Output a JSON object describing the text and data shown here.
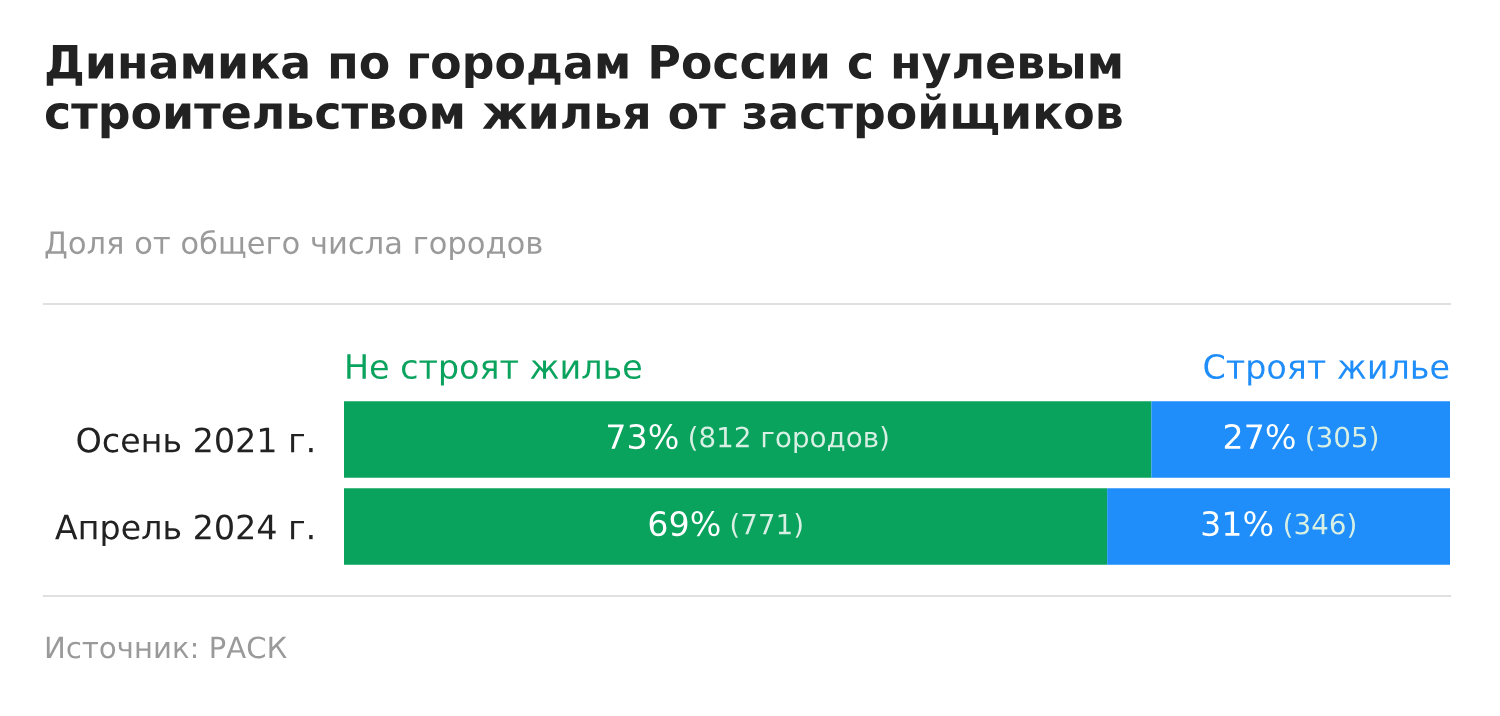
{
  "chart_data": {
    "type": "bar",
    "orientation": "horizontal",
    "stacked": true,
    "title": "Динамика по городам России с нулевым\nстроительством жилья от застройщиков",
    "subtitle": "Доля от общего числа городов",
    "categories": [
      "Осень 2021 г.",
      "Апрель 2024 г."
    ],
    "series": [
      {
        "name": "Не строят жилье",
        "color": "#0aa35e",
        "values": [
          73,
          69
        ],
        "value_labels": [
          "73% (812 городов)",
          "69% (771)"
        ]
      },
      {
        "name": "Строят жилье",
        "color": "#1f8efa",
        "values": [
          27,
          31
        ],
        "value_labels": [
          "27% (305)",
          "31% (346)"
        ]
      }
    ],
    "xlim": [
      0,
      100
    ],
    "tick_labels": "y",
    "legend": "top",
    "annotations": [
      "Источник: РАСК"
    ]
  }
}
